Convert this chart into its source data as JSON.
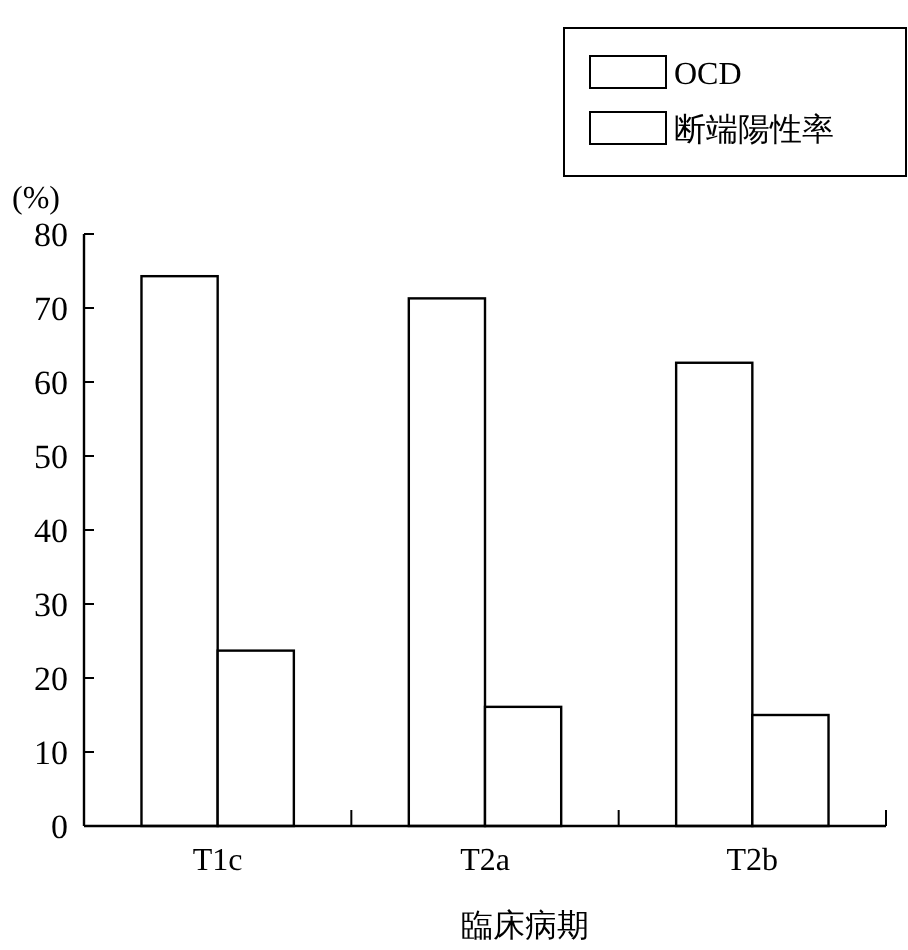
{
  "chart_data": {
    "type": "bar",
    "categories": [
      "T1c",
      "T2a",
      "T2b"
    ],
    "series": [
      {
        "name": "OCD",
        "color": "#ffffff",
        "values": [
          74.3,
          71.3,
          62.6
        ]
      },
      {
        "name": "断端陽性率",
        "color": "#ffffff",
        "values": [
          23.7,
          16.1,
          15.0
        ]
      }
    ],
    "ylabel": "(%)",
    "xlabel": "臨床病期",
    "ylim": [
      0,
      80
    ],
    "yticks": [
      0,
      10,
      20,
      30,
      40,
      50,
      60,
      70,
      80
    ],
    "legend": "top right",
    "grid": false
  }
}
